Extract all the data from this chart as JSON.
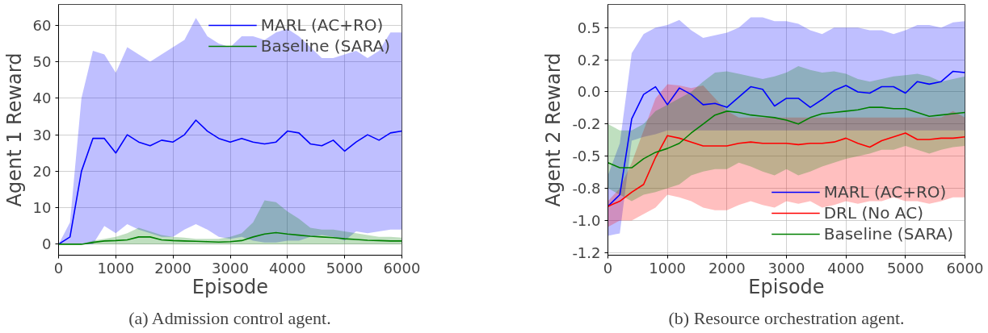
{
  "chart_data": [
    {
      "type": "line",
      "xlabel": "Episode",
      "ylabel": "Agent 1 Reward",
      "annotations": [
        "(a) Admission control agent."
      ],
      "xlim": [
        0,
        6000
      ],
      "xticks": [
        0,
        1000,
        2000,
        3000,
        4000,
        5000,
        6000
      ],
      "ylim": [
        -3,
        65.7
      ],
      "yticks": [
        0,
        10,
        20,
        30,
        40,
        50,
        60
      ],
      "grid": true,
      "legend": "top right",
      "marker": "none",
      "line_style": "solid",
      "x": [
        0,
        200,
        400,
        600,
        800,
        1000,
        1200,
        1400,
        1600,
        1800,
        2000,
        2200,
        2400,
        2600,
        2800,
        3000,
        3200,
        3400,
        3600,
        3800,
        4000,
        4200,
        4400,
        4600,
        4800,
        5000,
        5200,
        5400,
        5600,
        5800,
        6000
      ],
      "series": [
        {
          "name": "MARL (AC+RO)",
          "color": "#0000ff",
          "values": [
            0,
            2,
            20,
            29,
            29,
            25,
            30,
            28,
            27,
            28.5,
            28,
            30,
            34,
            31,
            29,
            28,
            29,
            28,
            27.5,
            28,
            31,
            30.5,
            27.5,
            27,
            28.5,
            25.5,
            28,
            30,
            28.5,
            30.5,
            31
          ],
          "upper": [
            0,
            6,
            40,
            53,
            52,
            47,
            54,
            52,
            50,
            52,
            54,
            56,
            62,
            57,
            55,
            54,
            57,
            57,
            56,
            58,
            59,
            57,
            54,
            51,
            51,
            52,
            53,
            51,
            53,
            58,
            58
          ],
          "lower": [
            0,
            0,
            0,
            0,
            5,
            3,
            5.5,
            4,
            3,
            2,
            2,
            4,
            5.5,
            4,
            2,
            1.5,
            2,
            1,
            0.5,
            0.5,
            1,
            1,
            2,
            2.5,
            2,
            1,
            3.5,
            3,
            3.5,
            4,
            4
          ]
        },
        {
          "name": "Baseline (SARA)",
          "color": "#008000",
          "values": [
            0,
            0,
            0,
            0.5,
            0.9,
            1,
            1.2,
            2,
            2,
            1.2,
            1,
            0.9,
            0.8,
            0.7,
            0.6,
            0.7,
            1,
            2,
            2.8,
            3.2,
            2.8,
            2.5,
            2.2,
            2,
            1.8,
            1.5,
            1.3,
            1.1,
            1,
            0.9,
            0.9
          ],
          "upper": [
            0,
            0,
            0,
            1,
            1.5,
            2,
            3,
            4.5,
            3.5,
            2.5,
            2,
            1.8,
            1.5,
            1.5,
            1.5,
            2,
            3,
            6,
            12,
            11.5,
            9,
            7,
            4.5,
            4,
            4,
            3.5,
            3,
            2.5,
            2,
            2,
            1.8
          ],
          "lower": [
            0,
            0,
            0,
            0,
            0,
            0,
            0,
            0,
            0,
            0,
            0,
            0,
            0,
            0,
            0,
            0,
            0,
            0,
            0,
            0,
            0,
            0,
            0,
            0,
            0,
            0,
            0,
            0,
            0,
            0,
            0
          ]
        }
      ]
    },
    {
      "type": "line",
      "xlabel": "Episode",
      "ylabel": "Agent 2 Reward",
      "annotations": [
        "(b) Resource orchestration agent."
      ],
      "xlim": [
        0,
        6000
      ],
      "xticks": [
        0,
        1000,
        2000,
        3000,
        4000,
        5000,
        6000
      ],
      "ylim": [
        -1.27,
        0.68
      ],
      "yticks": [
        {
          "value": 0.5,
          "label": "0.5"
        },
        {
          "value": 0.25,
          "label": "0.2"
        },
        {
          "value": 0,
          "label": "0.0"
        },
        {
          "value": -0.25,
          "label": "-0.2"
        },
        {
          "value": -0.5,
          "label": "-0.5"
        },
        {
          "value": -0.75,
          "label": "-0.8"
        },
        {
          "value": -1.0,
          "label": "-1.0"
        },
        {
          "value": -1.25,
          "label": "-1.2"
        }
      ],
      "grid": true,
      "legend": "bottom right",
      "marker": "none",
      "line_style": "solid",
      "x": [
        0,
        200,
        400,
        600,
        800,
        1000,
        1200,
        1400,
        1600,
        1800,
        2000,
        2200,
        2400,
        2600,
        2800,
        3000,
        3200,
        3400,
        3600,
        3800,
        4000,
        4200,
        4400,
        4600,
        4800,
        5000,
        5200,
        5400,
        5600,
        5800,
        6000
      ],
      "series": [
        {
          "name": "MARL (AC+RO)",
          "color": "#0000ff",
          "values": [
            -0.89,
            -0.8,
            -0.21,
            -0.02,
            0.04,
            -0.1,
            0.03,
            -0.02,
            -0.1,
            -0.09,
            -0.12,
            -0.04,
            0.04,
            0.02,
            -0.11,
            -0.05,
            -0.05,
            -0.12,
            -0.06,
            0.01,
            0.05,
            0,
            -0.01,
            0.04,
            0.04,
            -0.01,
            0.08,
            0.06,
            0.08,
            0.16,
            0.15
          ],
          "upper": [
            -0.65,
            -0.4,
            0.3,
            0.45,
            0.5,
            0.52,
            0.56,
            0.48,
            0.42,
            0.44,
            0.46,
            0.5,
            0.58,
            0.58,
            0.55,
            0.55,
            0.53,
            0.48,
            0.45,
            0.5,
            0.5,
            0.5,
            0.48,
            0.48,
            0.45,
            0.48,
            0.52,
            0.52,
            0.5,
            0.54,
            0.55
          ],
          "lower": [
            -1.12,
            -1.1,
            -0.38,
            -0.35,
            -0.33,
            -0.3,
            -0.3,
            -0.3,
            -0.3,
            -0.3,
            -0.3,
            -0.3,
            -0.3,
            -0.3,
            -0.3,
            -0.3,
            -0.3,
            -0.3,
            -0.3,
            -0.3,
            -0.3,
            -0.3,
            -0.3,
            -0.3,
            -0.3,
            -0.3,
            -0.3,
            -0.3,
            -0.3,
            -0.3,
            -0.3
          ]
        },
        {
          "name": "DRL (No AC)",
          "color": "#ff0000",
          "values": [
            -0.89,
            -0.85,
            -0.78,
            -0.72,
            -0.51,
            -0.34,
            -0.36,
            -0.39,
            -0.42,
            -0.42,
            -0.42,
            -0.4,
            -0.39,
            -0.4,
            -0.4,
            -0.4,
            -0.41,
            -0.4,
            -0.4,
            -0.39,
            -0.36,
            -0.4,
            -0.43,
            -0.38,
            -0.35,
            -0.32,
            -0.37,
            -0.37,
            -0.36,
            -0.36,
            -0.35
          ],
          "upper": [
            -0.85,
            -0.75,
            -0.55,
            -0.3,
            -0.05,
            0.06,
            0.05,
            0.03,
            0.05,
            -0.05,
            -0.15,
            -0.2,
            -0.2,
            -0.2,
            -0.2,
            -0.2,
            -0.2,
            -0.2,
            -0.2,
            -0.2,
            -0.2,
            -0.2,
            -0.2,
            -0.2,
            -0.2,
            -0.2,
            -0.2,
            -0.2,
            -0.2,
            -0.15,
            -0.2
          ],
          "lower": [
            -1.05,
            -1.0,
            -1.0,
            -0.95,
            -0.9,
            -0.8,
            -0.82,
            -0.85,
            -0.9,
            -0.92,
            -0.92,
            -0.88,
            -0.85,
            -0.88,
            -0.9,
            -0.85,
            -0.87,
            -0.85,
            -0.9,
            -0.88,
            -0.85,
            -0.87,
            -0.85,
            -0.85,
            -0.82,
            -0.85,
            -0.85,
            -0.87,
            -0.85,
            -0.82,
            -0.82
          ]
        },
        {
          "name": "Baseline (SARA)",
          "color": "#008000",
          "values": [
            -0.55,
            -0.59,
            -0.59,
            -0.52,
            -0.47,
            -0.44,
            -0.4,
            -0.32,
            -0.25,
            -0.18,
            -0.15,
            -0.16,
            -0.18,
            -0.19,
            -0.2,
            -0.22,
            -0.25,
            -0.2,
            -0.17,
            -0.16,
            -0.15,
            -0.14,
            -0.12,
            -0.12,
            -0.13,
            -0.13,
            -0.16,
            -0.19,
            -0.18,
            -0.17,
            -0.16
          ],
          "upper": [
            -0.25,
            -0.3,
            -0.3,
            -0.25,
            -0.15,
            -0.1,
            -0.05,
            0,
            0.08,
            0.15,
            0.16,
            0.14,
            0.12,
            0.1,
            0.12,
            0.15,
            0.2,
            0.17,
            0.15,
            0.16,
            0.14,
            0.1,
            0.08,
            0.1,
            0.12,
            0.13,
            0.14,
            0.12,
            0.08,
            0.1,
            0.12
          ],
          "lower": [
            -0.75,
            -0.8,
            -0.85,
            -0.8,
            -0.78,
            -0.75,
            -0.72,
            -0.65,
            -0.62,
            -0.6,
            -0.6,
            -0.55,
            -0.58,
            -0.62,
            -0.65,
            -0.6,
            -0.65,
            -0.62,
            -0.58,
            -0.55,
            -0.52,
            -0.5,
            -0.48,
            -0.45,
            -0.45,
            -0.42,
            -0.45,
            -0.48,
            -0.45,
            -0.43,
            -0.42
          ]
        }
      ]
    }
  ]
}
